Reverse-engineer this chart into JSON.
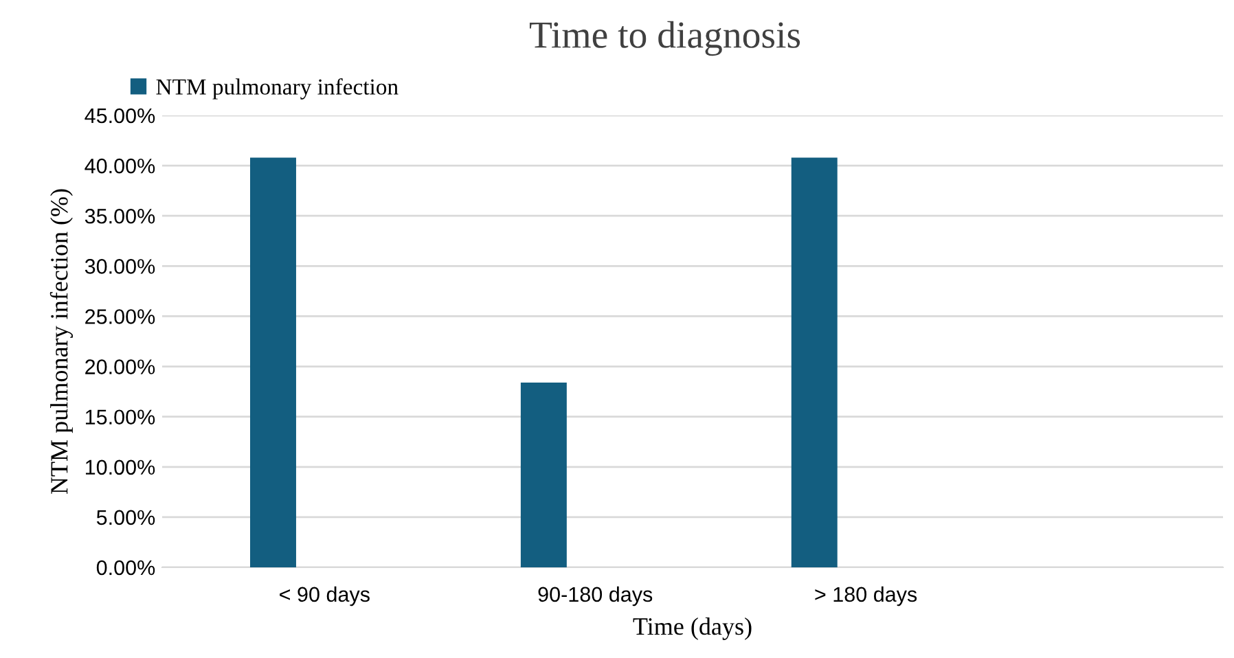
{
  "chart_data": {
    "type": "bar",
    "title": "Time to diagnosis",
    "xlabel": "Time (days)",
    "ylabel": "NTM pulmonary infection (%)",
    "categories": [
      "< 90 days",
      "90-180 days",
      "> 180 days"
    ],
    "series": [
      {
        "name": "NTM pulmonary infection",
        "color": "#135e80",
        "values": [
          40.8,
          18.4,
          40.8
        ]
      }
    ],
    "ylim": [
      0,
      45
    ],
    "yticks": [
      {
        "value": 0,
        "label": "0.00%"
      },
      {
        "value": 5,
        "label": "5.00%"
      },
      {
        "value": 10,
        "label": "10.00%"
      },
      {
        "value": 15,
        "label": "15.00%"
      },
      {
        "value": 20,
        "label": "20.00%"
      },
      {
        "value": 25,
        "label": "25.00%"
      },
      {
        "value": 30,
        "label": "30.00%"
      },
      {
        "value": 35,
        "label": "35.00%"
      },
      {
        "value": 40,
        "label": "40.00%"
      },
      {
        "value": 45,
        "label": "45.00%"
      }
    ],
    "grid": "y",
    "legend": "top left"
  }
}
